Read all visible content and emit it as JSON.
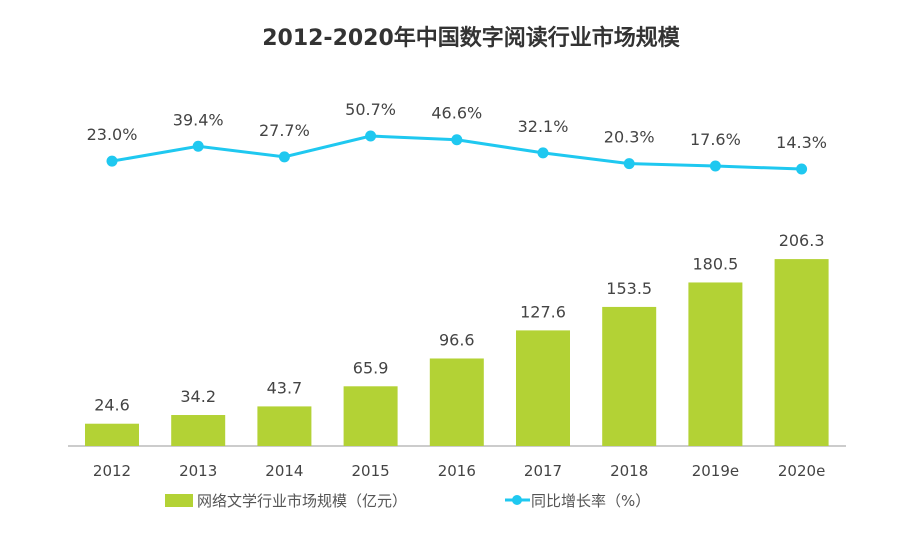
{
  "chart_data": {
    "type": "bar+line",
    "title": "2012-2020年中国数字阅读行业市场规模",
    "categories": [
      "2012",
      "2013",
      "2014",
      "2015",
      "2016",
      "2017",
      "2018",
      "2019e",
      "2020e"
    ],
    "series": [
      {
        "name": "网络文学行业市场规模（亿元）",
        "type": "bar",
        "color": "#b3d235",
        "values": [
          24.6,
          34.2,
          43.7,
          65.9,
          96.6,
          127.6,
          153.5,
          180.5,
          206.3
        ],
        "labels": [
          "24.6",
          "34.2",
          "43.7",
          "65.9",
          "96.6",
          "127.6",
          "153.5",
          "180.5",
          "206.3"
        ]
      },
      {
        "name": "同比增长率（%）",
        "type": "line",
        "color": "#1fc8f0",
        "values": [
          23.0,
          39.4,
          27.7,
          50.7,
          46.6,
          32.1,
          20.3,
          17.6,
          14.3
        ],
        "labels": [
          "23.0%",
          "39.4%",
          "27.7%",
          "50.7%",
          "46.6%",
          "32.1%",
          "20.3%",
          "17.6%",
          "14.3%"
        ]
      }
    ],
    "legend": "bottom",
    "grid": false
  }
}
